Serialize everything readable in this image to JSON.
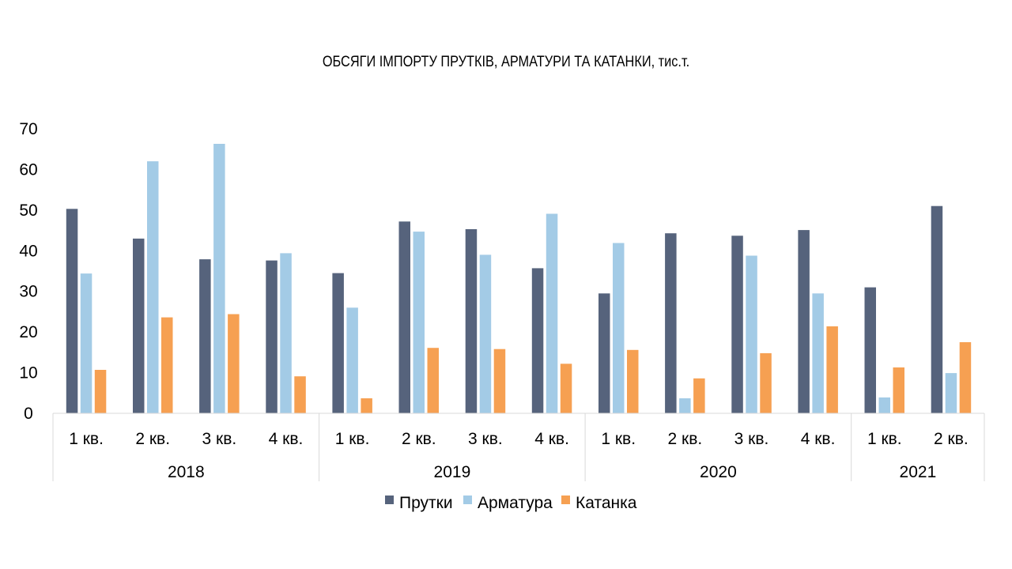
{
  "chart_data": {
    "type": "bar",
    "title": "ОБСЯГИ ІМПОРТУ ПРУТКІВ, АРМАТУРИ ТА КАТАНКИ, тис.т.",
    "xlabel": "",
    "ylabel": "",
    "ylim": [
      0,
      70
    ],
    "yticks": [
      "0",
      "10",
      "20",
      "30",
      "40",
      "50",
      "60",
      "70"
    ],
    "grid": false,
    "legend_position": "bottom",
    "categories": [
      "1 кв.",
      "2 кв.",
      "3 кв.",
      "4 кв.",
      "1 кв.",
      "2 кв.",
      "3 кв.",
      "4 кв.",
      "1 кв.",
      "2 кв.",
      "3 кв.",
      "4 кв.",
      "1 кв.",
      "2 кв."
    ],
    "groups": [
      {
        "label": "2018",
        "count": 4
      },
      {
        "label": "2019",
        "count": 4
      },
      {
        "label": "2020",
        "count": 4
      },
      {
        "label": "2021",
        "count": 2
      }
    ],
    "series": [
      {
        "name": "Прутки",
        "color": "#56637c",
        "values": [
          50.3,
          43.0,
          37.9,
          37.6,
          34.5,
          47.2,
          45.3,
          35.7,
          29.5,
          44.3,
          43.7,
          45.1,
          31.0,
          51.0
        ]
      },
      {
        "name": "Арматура",
        "color": "#a3cbe6",
        "values": [
          34.4,
          62.0,
          66.3,
          39.4,
          26.0,
          44.7,
          39.0,
          49.1,
          41.9,
          3.7,
          38.8,
          29.5,
          3.9,
          9.9
        ]
      },
      {
        "name": "Катанка",
        "color": "#f6a052",
        "values": [
          10.7,
          23.6,
          24.4,
          9.1,
          3.7,
          16.1,
          15.8,
          12.2,
          15.6,
          8.6,
          14.8,
          21.4,
          11.3,
          17.5
        ]
      }
    ]
  }
}
